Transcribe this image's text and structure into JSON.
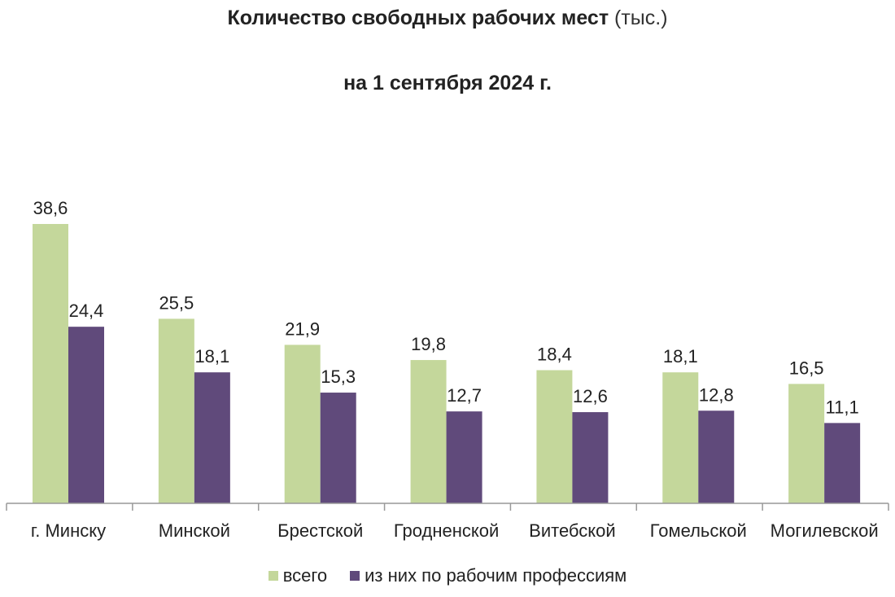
{
  "title": {
    "main": "Количество свободных рабочих мест",
    "unit": "(тыс.)",
    "subtitle": "на 1 сентября 2024 г."
  },
  "chart_data": {
    "type": "bar",
    "categories": [
      "г. Минску",
      "Минской",
      "Брестской",
      "Гродненской",
      "Витебской",
      "Гомельской",
      "Могилевской"
    ],
    "series": [
      {
        "name": "всего",
        "color": "#c4d79b",
        "values": [
          38.6,
          25.5,
          21.9,
          19.8,
          18.4,
          18.1,
          16.5
        ]
      },
      {
        "name": "из них по рабочим профессиям",
        "color": "#604a7b",
        "values": [
          24.4,
          18.1,
          15.3,
          12.7,
          12.6,
          12.8,
          11.1
        ]
      }
    ],
    "ylim": [
      0,
      38.6
    ],
    "grid": false,
    "legend_position": "bottom",
    "decimal_separator": ","
  }
}
